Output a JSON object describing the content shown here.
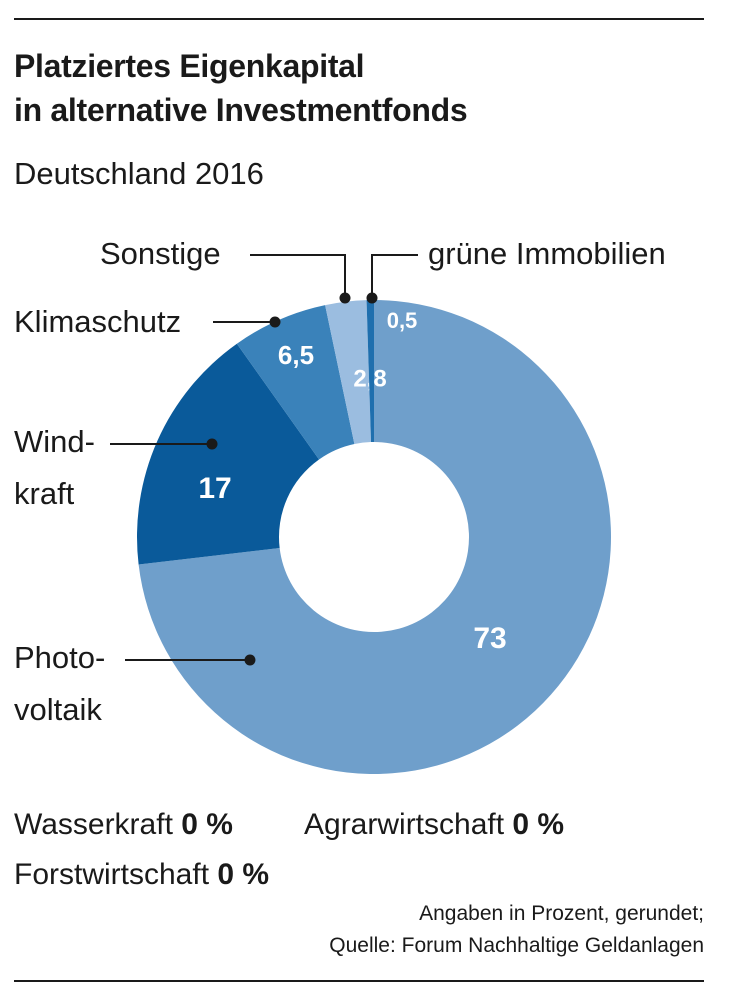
{
  "chart_data": {
    "type": "donut",
    "title": "Platziertes Eigenkapital\nin alternative Investmentfonds",
    "subtitle": "Deutschland 2016",
    "categories": [
      "Photo-\nvoltaik",
      "Wind-\nkraft",
      "Klimaschutz",
      "Sonstige",
      "grüne Immobilien"
    ],
    "values": [
      73,
      17,
      6.5,
      2.8,
      0.5
    ],
    "value_labels": [
      "73",
      "17",
      "6,5",
      "2,8",
      "0,5"
    ],
    "colors": [
      "#6f9fcb",
      "#0a5a9a",
      "#3a82ba",
      "#9bbde0",
      "#1f6fae"
    ],
    "extra": [
      {
        "name": "Wasserkraft",
        "label": "0 %"
      },
      {
        "name": "Agrarwirtschaft",
        "label": "0 %"
      },
      {
        "name": "Forstwirtschaft",
        "label": "0 %"
      }
    ],
    "note": "Angaben in Prozent, gerundet;",
    "source": "Quelle: Forum Nachhaltige Geldanlagen"
  }
}
